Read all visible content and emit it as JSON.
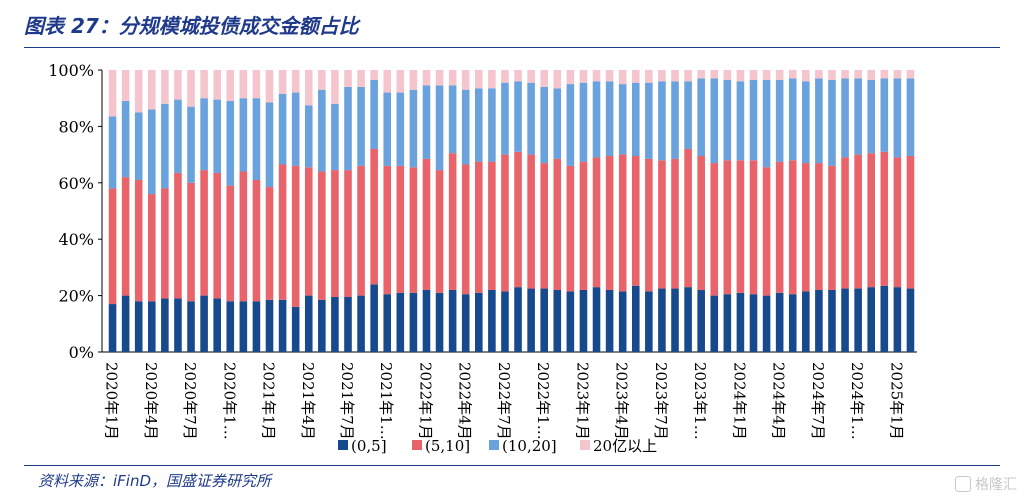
{
  "header": {
    "title": "图表 27：分规模城投债成交金额占比"
  },
  "footer": {
    "source": "资料来源：iFinD，国盛证券研究所",
    "watermark": "格隆汇"
  },
  "colors": {
    "s1": "#174a8c",
    "s2": "#e8646a",
    "s3": "#6aa2dd",
    "s4": "#f5c5cd",
    "title": "#1f3a8a",
    "axis": "#000000"
  },
  "chart_data": {
    "type": "bar",
    "stacked": true,
    "y_ticks": [
      "0%",
      "20%",
      "40%",
      "60%",
      "80%",
      "100%"
    ],
    "ylim": [
      0,
      100
    ],
    "x_tick_labels": [
      "2020年1月",
      "2020年4月",
      "2020年7月",
      "2020年1…",
      "2021年1月",
      "2021年4月",
      "2021年7月",
      "2021年1…",
      "2022年1月",
      "2022年4月",
      "2022年7月",
      "2022年1…",
      "2023年1月",
      "2023年4月",
      "2023年7月",
      "2023年1…",
      "2024年1月",
      "2024年4月",
      "2024年7月",
      "2024年1…",
      "2025年1月"
    ],
    "legend": {
      "placement": "bottom",
      "items": [
        "(0,5]",
        "(5,10]",
        "(10,20]",
        "20亿以上"
      ]
    },
    "series": [
      {
        "name": "(0,5]",
        "values": [
          17,
          20,
          18,
          18,
          19,
          19,
          18,
          20,
          19,
          18,
          18,
          18,
          18.5,
          18.5,
          16,
          20,
          18.5,
          19.5,
          19.5,
          20,
          24,
          20.5,
          21,
          21,
          22,
          21,
          22,
          20.5,
          21,
          22,
          21.5,
          23,
          22.5,
          22.5,
          22,
          21.5,
          22,
          23,
          22,
          21.5,
          23.5,
          21.5,
          22.5,
          22.5,
          23,
          22,
          20,
          20.5,
          21,
          20.5,
          20,
          21,
          20.5,
          21.5,
          22,
          22,
          22.5,
          22.5,
          23,
          23.5,
          23,
          22.5
        ]
      },
      {
        "name": "(5,10]",
        "values": [
          41,
          42,
          43,
          38,
          39,
          44.5,
          42,
          44.5,
          44.5,
          41,
          46,
          43,
          40,
          48,
          50,
          45.5,
          45.5,
          45,
          45,
          46,
          48,
          45.5,
          45,
          44.5,
          46.5,
          43.5,
          48.5,
          46,
          46.5,
          45.5,
          48.5,
          48,
          47.5,
          44.5,
          46.5,
          44.5,
          45.5,
          46,
          47.5,
          48.5,
          46,
          47,
          45.5,
          46,
          49,
          47.5,
          47,
          47.5,
          47,
          47.5,
          45.5,
          46.5,
          47.5,
          45.5,
          45,
          44,
          46.5,
          47.5,
          47.5,
          47.5,
          46,
          47
        ]
      },
      {
        "name": "(10,20]",
        "values": [
          25.5,
          27,
          24,
          30,
          30,
          26,
          27,
          25.5,
          26,
          30,
          26,
          29,
          30,
          25,
          26,
          22,
          29,
          23.5,
          29.5,
          28,
          24.5,
          26,
          26,
          27.5,
          26,
          30,
          24,
          26.5,
          26,
          26,
          25.5,
          25,
          25.5,
          27,
          25,
          29,
          28,
          27,
          26.5,
          25,
          26,
          27,
          28,
          27.5,
          24,
          27.5,
          30,
          28.5,
          28,
          28.5,
          31,
          29,
          29,
          29,
          30,
          30.5,
          28,
          27,
          26,
          26,
          28,
          27.5
        ]
      },
      {
        "name": "20亿以上",
        "values": [
          16.5,
          11,
          15,
          14,
          12,
          10.5,
          13,
          10,
          10.5,
          11,
          10,
          10,
          11.5,
          8.5,
          8,
          12.5,
          7,
          12,
          6,
          6,
          3.5,
          8,
          8,
          7,
          5.5,
          5.5,
          5.5,
          7,
          6.5,
          6.5,
          4.5,
          4,
          4.5,
          6,
          6.5,
          5,
          4.5,
          4,
          4,
          5,
          4.5,
          4.5,
          4,
          4,
          4,
          3,
          3,
          3.5,
          4,
          3.5,
          3.5,
          3.5,
          3,
          4,
          3,
          3.5,
          3,
          3,
          3.5,
          3,
          3,
          3
        ]
      }
    ]
  }
}
